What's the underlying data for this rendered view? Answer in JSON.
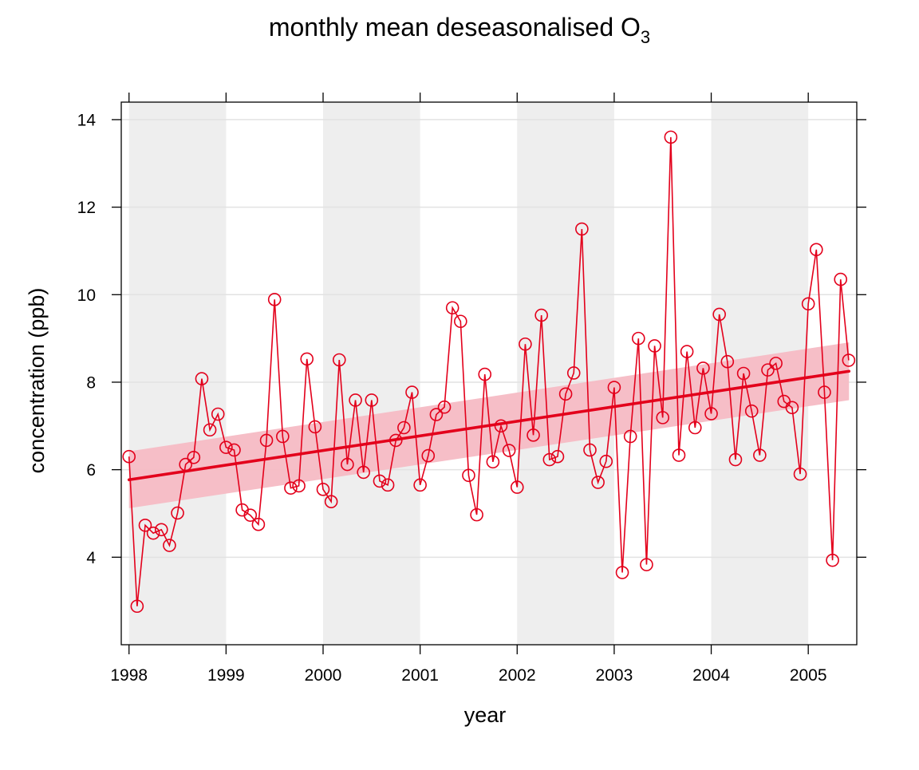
{
  "chart_data": {
    "type": "line",
    "title": "monthly mean deseasonalised O",
    "title_subscript": "3",
    "xlabel": "year",
    "ylabel": "concentration (ppb)",
    "xlim": [
      1997.92,
      2005.5
    ],
    "ylim": [
      2.0,
      14.4
    ],
    "x_ticks": [
      1998,
      1999,
      2000,
      2001,
      2002,
      2003,
      2004,
      2005
    ],
    "y_ticks": [
      4,
      6,
      8,
      10,
      12,
      14
    ],
    "grid": true,
    "shaded_year_bands": [
      [
        1998,
        1999
      ],
      [
        2000,
        2001
      ],
      [
        2002,
        2003
      ],
      [
        2004,
        2005
      ]
    ],
    "colors": {
      "series": "#E3001B",
      "trend": "#E3001B",
      "ci_band": "#F6BBC4",
      "year_band": "#EEEEEE",
      "grid": "#E2E2E2"
    },
    "trend": {
      "start": [
        1998.0,
        5.77
      ],
      "end": [
        2005.42,
        8.25
      ]
    },
    "trend_ci": {
      "x": [
        1998.0,
        2005.42
      ],
      "lower": [
        5.12,
        7.59
      ],
      "upper": [
        6.42,
        8.91
      ]
    },
    "series": [
      {
        "values": [
          6.3,
          2.88,
          4.73,
          4.55,
          4.63,
          4.27,
          5.01,
          6.12,
          6.28,
          8.08,
          6.91,
          7.27,
          6.51,
          6.45,
          5.08,
          4.96,
          4.75,
          6.67,
          9.89,
          6.76,
          5.58,
          5.63,
          8.53,
          6.98,
          5.55,
          5.27,
          8.51,
          6.12,
          7.59,
          5.94,
          7.59,
          5.74,
          5.65,
          6.67,
          6.96,
          7.77,
          5.65,
          6.32,
          7.26,
          7.43,
          9.7,
          9.39,
          5.87,
          4.97,
          8.18,
          6.18,
          7.0,
          6.44,
          5.6,
          8.87,
          6.79,
          9.53,
          6.23,
          6.3,
          7.73,
          8.21,
          11.5,
          6.45,
          5.71,
          6.19,
          7.88,
          3.65,
          6.76,
          9.0,
          3.83,
          8.83,
          7.19,
          13.6,
          6.33,
          8.7,
          6.96,
          8.32,
          7.28,
          9.55,
          8.47,
          6.23,
          8.2,
          7.34,
          6.33,
          8.28,
          8.43,
          7.56,
          7.42,
          5.9,
          9.79,
          11.03,
          7.77,
          3.93,
          10.35,
          8.5
        ]
      }
    ]
  }
}
